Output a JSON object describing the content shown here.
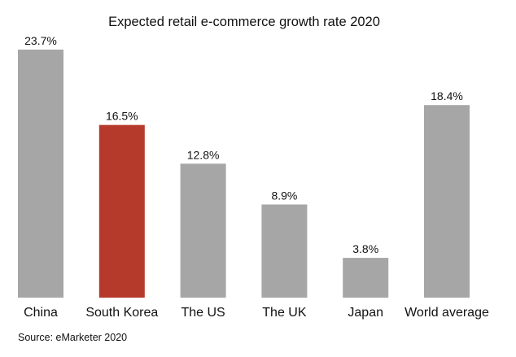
{
  "chart_data": {
    "type": "bar",
    "title": "Expected retail e-commerce growth rate 2020",
    "categories": [
      "China",
      "South Korea",
      "The US",
      "The UK",
      "Japan",
      "World average"
    ],
    "values": [
      23.7,
      16.5,
      12.8,
      8.9,
      3.8,
      18.4
    ],
    "data_labels": [
      "23.7%",
      "16.5%",
      "12.8%",
      "8.9%",
      "3.8%",
      "18.4%"
    ],
    "xlabel": "",
    "ylabel": "",
    "ylim": [
      0,
      23.7
    ],
    "grid": false,
    "colors": {
      "default": "#a6a6a6",
      "highlight": "#b63a2b"
    },
    "highlighted_category": "South Korea"
  },
  "source": "Source: eMarketer 2020"
}
